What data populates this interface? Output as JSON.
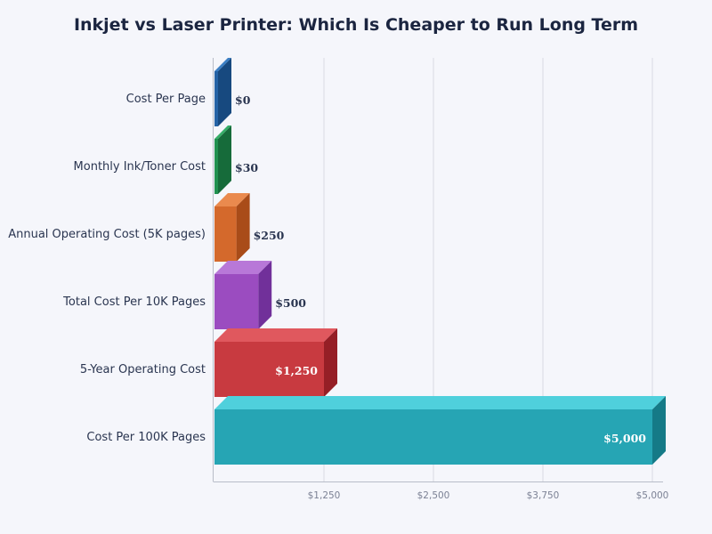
{
  "chart_data": {
    "type": "bar",
    "orientation": "horizontal",
    "title": "Inkjet vs Laser Printer: Which Is Cheaper to Run Long Term",
    "categories": [
      "Cost Per Page",
      "Monthly Ink/Toner Cost",
      "Annual Operating Cost (5K pages)",
      "Total Cost Per 10K Pages",
      "5-Year Operating Cost",
      "Cost Per 100K Pages"
    ],
    "values": [
      0,
      30,
      250,
      500,
      1250,
      5000
    ],
    "value_labels": [
      "$0",
      "$30",
      "$250",
      "$500",
      "$1,250",
      "$5,000"
    ],
    "xlim": [
      0,
      5000
    ],
    "x_ticks": [
      1250,
      2500,
      3750,
      5000
    ],
    "x_tick_labels": [
      "$1,250",
      "$2,500",
      "$3,750",
      "$5,000"
    ],
    "grid": true,
    "bar_style": "3d",
    "colors": [
      "#2563a6",
      "#219150",
      "#d4692c",
      "#9b4cc0",
      "#c83a40",
      "#26a5b4"
    ],
    "top_colors": [
      "#3b7fc4",
      "#36ad68",
      "#ea8a4e",
      "#b878d8",
      "#e0585e",
      "#4fd0dc"
    ],
    "side_colors": [
      "#17497f",
      "#166b3a",
      "#a94c19",
      "#71309a",
      "#951f26",
      "#157a87"
    ]
  }
}
